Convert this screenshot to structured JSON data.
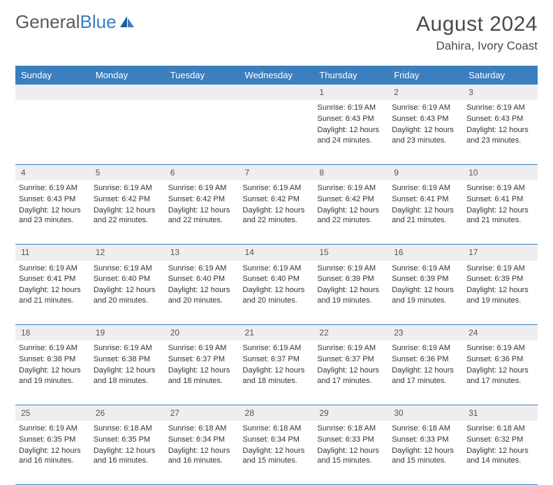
{
  "logo": {
    "text1": "General",
    "text2": "Blue"
  },
  "header": {
    "month_year": "August 2024",
    "location": "Dahira, Ivory Coast"
  },
  "colors": {
    "header_bg": "#3b7fbf",
    "header_text": "#ffffff",
    "daynum_bg": "#eeeeee",
    "border": "#3b7fbf"
  },
  "weekdays": [
    "Sunday",
    "Monday",
    "Tuesday",
    "Wednesday",
    "Thursday",
    "Friday",
    "Saturday"
  ],
  "weeks": [
    [
      null,
      null,
      null,
      null,
      {
        "n": "1",
        "sr": "6:19 AM",
        "ss": "6:43 PM",
        "dl": "12 hours and 24 minutes."
      },
      {
        "n": "2",
        "sr": "6:19 AM",
        "ss": "6:43 PM",
        "dl": "12 hours and 23 minutes."
      },
      {
        "n": "3",
        "sr": "6:19 AM",
        "ss": "6:43 PM",
        "dl": "12 hours and 23 minutes."
      }
    ],
    [
      {
        "n": "4",
        "sr": "6:19 AM",
        "ss": "6:43 PM",
        "dl": "12 hours and 23 minutes."
      },
      {
        "n": "5",
        "sr": "6:19 AM",
        "ss": "6:42 PM",
        "dl": "12 hours and 22 minutes."
      },
      {
        "n": "6",
        "sr": "6:19 AM",
        "ss": "6:42 PM",
        "dl": "12 hours and 22 minutes."
      },
      {
        "n": "7",
        "sr": "6:19 AM",
        "ss": "6:42 PM",
        "dl": "12 hours and 22 minutes."
      },
      {
        "n": "8",
        "sr": "6:19 AM",
        "ss": "6:42 PM",
        "dl": "12 hours and 22 minutes."
      },
      {
        "n": "9",
        "sr": "6:19 AM",
        "ss": "6:41 PM",
        "dl": "12 hours and 21 minutes."
      },
      {
        "n": "10",
        "sr": "6:19 AM",
        "ss": "6:41 PM",
        "dl": "12 hours and 21 minutes."
      }
    ],
    [
      {
        "n": "11",
        "sr": "6:19 AM",
        "ss": "6:41 PM",
        "dl": "12 hours and 21 minutes."
      },
      {
        "n": "12",
        "sr": "6:19 AM",
        "ss": "6:40 PM",
        "dl": "12 hours and 20 minutes."
      },
      {
        "n": "13",
        "sr": "6:19 AM",
        "ss": "6:40 PM",
        "dl": "12 hours and 20 minutes."
      },
      {
        "n": "14",
        "sr": "6:19 AM",
        "ss": "6:40 PM",
        "dl": "12 hours and 20 minutes."
      },
      {
        "n": "15",
        "sr": "6:19 AM",
        "ss": "6:39 PM",
        "dl": "12 hours and 19 minutes."
      },
      {
        "n": "16",
        "sr": "6:19 AM",
        "ss": "6:39 PM",
        "dl": "12 hours and 19 minutes."
      },
      {
        "n": "17",
        "sr": "6:19 AM",
        "ss": "6:39 PM",
        "dl": "12 hours and 19 minutes."
      }
    ],
    [
      {
        "n": "18",
        "sr": "6:19 AM",
        "ss": "6:38 PM",
        "dl": "12 hours and 19 minutes."
      },
      {
        "n": "19",
        "sr": "6:19 AM",
        "ss": "6:38 PM",
        "dl": "12 hours and 18 minutes."
      },
      {
        "n": "20",
        "sr": "6:19 AM",
        "ss": "6:37 PM",
        "dl": "12 hours and 18 minutes."
      },
      {
        "n": "21",
        "sr": "6:19 AM",
        "ss": "6:37 PM",
        "dl": "12 hours and 18 minutes."
      },
      {
        "n": "22",
        "sr": "6:19 AM",
        "ss": "6:37 PM",
        "dl": "12 hours and 17 minutes."
      },
      {
        "n": "23",
        "sr": "6:19 AM",
        "ss": "6:36 PM",
        "dl": "12 hours and 17 minutes."
      },
      {
        "n": "24",
        "sr": "6:19 AM",
        "ss": "6:36 PM",
        "dl": "12 hours and 17 minutes."
      }
    ],
    [
      {
        "n": "25",
        "sr": "6:19 AM",
        "ss": "6:35 PM",
        "dl": "12 hours and 16 minutes."
      },
      {
        "n": "26",
        "sr": "6:18 AM",
        "ss": "6:35 PM",
        "dl": "12 hours and 16 minutes."
      },
      {
        "n": "27",
        "sr": "6:18 AM",
        "ss": "6:34 PM",
        "dl": "12 hours and 16 minutes."
      },
      {
        "n": "28",
        "sr": "6:18 AM",
        "ss": "6:34 PM",
        "dl": "12 hours and 15 minutes."
      },
      {
        "n": "29",
        "sr": "6:18 AM",
        "ss": "6:33 PM",
        "dl": "12 hours and 15 minutes."
      },
      {
        "n": "30",
        "sr": "6:18 AM",
        "ss": "6:33 PM",
        "dl": "12 hours and 15 minutes."
      },
      {
        "n": "31",
        "sr": "6:18 AM",
        "ss": "6:32 PM",
        "dl": "12 hours and 14 minutes."
      }
    ]
  ],
  "labels": {
    "sunrise": "Sunrise:",
    "sunset": "Sunset:",
    "daylight": "Daylight:"
  }
}
